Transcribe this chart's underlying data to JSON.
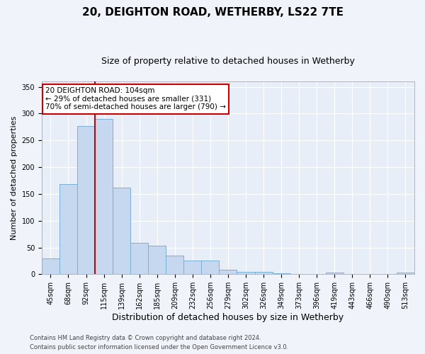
{
  "title": "20, DEIGHTON ROAD, WETHERBY, LS22 7TE",
  "subtitle": "Size of property relative to detached houses in Wetherby",
  "xlabel": "Distribution of detached houses by size in Wetherby",
  "ylabel": "Number of detached properties",
  "bar_color": "#c5d8f0",
  "bar_edge_color": "#7bafd4",
  "categories": [
    "45sqm",
    "68sqm",
    "92sqm",
    "115sqm",
    "139sqm",
    "162sqm",
    "185sqm",
    "209sqm",
    "232sqm",
    "256sqm",
    "279sqm",
    "302sqm",
    "326sqm",
    "349sqm",
    "373sqm",
    "396sqm",
    "419sqm",
    "443sqm",
    "466sqm",
    "490sqm",
    "513sqm"
  ],
  "values": [
    29,
    168,
    277,
    290,
    162,
    58,
    53,
    35,
    25,
    25,
    9,
    5,
    4,
    2,
    1,
    1,
    3,
    1,
    1,
    1,
    3
  ],
  "vline_x_idx": 3,
  "vline_color": "#cc0000",
  "annotation_text_line1": "20 DEIGHTON ROAD: 104sqm",
  "annotation_text_line2": "← 29% of detached houses are smaller (331)",
  "annotation_text_line3": "70% of semi-detached houses are larger (790) →",
  "ylim": [
    0,
    360
  ],
  "yticks": [
    0,
    50,
    100,
    150,
    200,
    250,
    300,
    350
  ],
  "background_color": "#f0f4fa",
  "plot_bg_color": "#e8eef8",
  "footer_line1": "Contains HM Land Registry data © Crown copyright and database right 2024.",
  "footer_line2": "Contains public sector information licensed under the Open Government Licence v3.0.",
  "grid_color": "#ffffff",
  "title_fontsize": 11,
  "subtitle_fontsize": 9,
  "annotation_fontsize": 7.5,
  "ylabel_fontsize": 8,
  "xlabel_fontsize": 9,
  "tick_fontsize": 7,
  "footer_fontsize": 6
}
